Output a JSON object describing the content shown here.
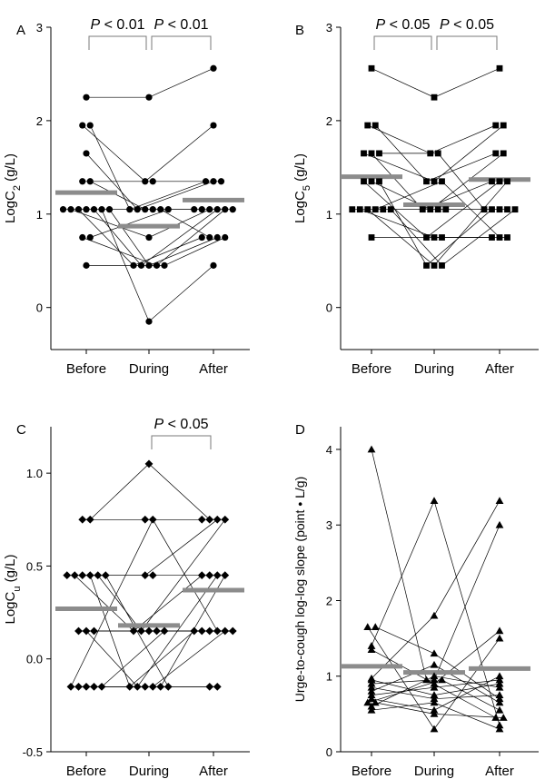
{
  "colors": {
    "ink": "#000000",
    "median_bar": "#8c8c8c",
    "background": "#ffffff"
  },
  "chart_data": [
    {
      "panel": "A",
      "type": "scatter",
      "marker": "circle",
      "ylabel": "LogC",
      "ylabel_sub": "2",
      "ylabel_unit": " (g/L)",
      "categories": [
        "Before",
        "During",
        "After"
      ],
      "ylim": [
        -0.45,
        3.0
      ],
      "yticks": [
        0,
        1,
        2,
        3
      ],
      "ytick_labels": [
        "0",
        "1",
        "2",
        "3"
      ],
      "brackets": [
        {
          "from": 0,
          "to": 1,
          "italic": "P",
          "text": " < 0.01"
        },
        {
          "from": 1,
          "to": 2,
          "italic": "P",
          "text": " < 0.01"
        }
      ],
      "medians": [
        1.23,
        0.87,
        1.15
      ],
      "subjects": [
        [
          2.25,
          2.25,
          2.56
        ],
        [
          1.95,
          1.35,
          1.95
        ],
        [
          1.95,
          1.05,
          1.35
        ],
        [
          1.65,
          1.05,
          1.35
        ],
        [
          1.35,
          1.35,
          1.35
        ],
        [
          1.35,
          1.05,
          1.05
        ],
        [
          1.05,
          1.05,
          1.05
        ],
        [
          1.05,
          0.75,
          1.05
        ],
        [
          1.05,
          0.45,
          0.75
        ],
        [
          1.05,
          1.05,
          0.75
        ],
        [
          1.05,
          0.45,
          1.05
        ],
        [
          1.05,
          -0.15,
          0.45
        ],
        [
          1.05,
          0.45,
          0.75
        ],
        [
          0.75,
          0.45,
          1.05
        ],
        [
          0.75,
          1.05,
          1.05
        ],
        [
          0.45,
          0.45,
          0.75
        ]
      ]
    },
    {
      "panel": "B",
      "type": "scatter",
      "marker": "square",
      "ylabel": "LogC",
      "ylabel_sub": "5",
      "ylabel_unit": " (g/L)",
      "categories": [
        "Before",
        "During",
        "After"
      ],
      "ylim": [
        -0.45,
        3.0
      ],
      "yticks": [
        0,
        1,
        2,
        3
      ],
      "ytick_labels": [
        "0",
        "1",
        "2",
        "3"
      ],
      "brackets": [
        {
          "from": 0,
          "to": 1,
          "italic": "P",
          "text": " < 0.05"
        },
        {
          "from": 1,
          "to": 2,
          "italic": "P",
          "text": " < 0.05"
        }
      ],
      "medians": [
        1.4,
        1.1,
        1.37
      ],
      "subjects": [
        [
          2.56,
          2.25,
          2.56
        ],
        [
          1.95,
          1.65,
          1.95
        ],
        [
          1.95,
          1.35,
          1.65
        ],
        [
          1.65,
          1.35,
          1.95
        ],
        [
          1.65,
          1.05,
          1.35
        ],
        [
          1.65,
          1.65,
          1.05
        ],
        [
          1.35,
          0.75,
          1.35
        ],
        [
          1.35,
          1.05,
          1.65
        ],
        [
          1.35,
          0.45,
          1.05
        ],
        [
          1.05,
          1.05,
          1.05
        ],
        [
          1.05,
          0.75,
          0.75
        ],
        [
          1.05,
          0.45,
          1.35
        ],
        [
          1.05,
          1.35,
          0.75
        ],
        [
          0.75,
          0.75,
          0.75
        ],
        [
          1.05,
          1.05,
          1.05
        ],
        [
          1.05,
          0.45,
          1.05
        ]
      ]
    },
    {
      "panel": "C",
      "type": "scatter",
      "marker": "diamond",
      "ylabel": "LogC",
      "ylabel_sub": "u",
      "ylabel_unit": " (g/L)",
      "categories": [
        "Before",
        "During",
        "After"
      ],
      "ylim": [
        -0.5,
        1.25
      ],
      "yticks": [
        -0.5,
        0.0,
        0.5,
        1.0
      ],
      "ytick_labels": [
        "-0.5",
        "0.0",
        "0.5",
        "1.0"
      ],
      "brackets": [
        {
          "from": 1,
          "to": 2,
          "italic": "P",
          "text": " < 0.05"
        }
      ],
      "medians": [
        0.27,
        0.18,
        0.37
      ],
      "subjects": [
        [
          0.75,
          0.75,
          0.75
        ],
        [
          0.75,
          1.05,
          0.75
        ],
        [
          0.45,
          0.45,
          0.75
        ],
        [
          0.45,
          0.15,
          0.45
        ],
        [
          0.45,
          0.45,
          0.45
        ],
        [
          0.45,
          -0.15,
          0.15
        ],
        [
          0.45,
          0.15,
          0.75
        ],
        [
          0.15,
          0.15,
          0.15
        ],
        [
          0.15,
          -0.15,
          0.45
        ],
        [
          0.15,
          0.15,
          0.15
        ],
        [
          -0.15,
          0.75,
          0.15
        ],
        [
          -0.15,
          -0.15,
          -0.15
        ],
        [
          -0.15,
          -0.15,
          0.15
        ],
        [
          -0.15,
          -0.15,
          0.45
        ],
        [
          -0.15,
          0.15,
          0.15
        ],
        [
          0.45,
          -0.15,
          -0.15
        ]
      ]
    },
    {
      "panel": "D",
      "type": "scatter",
      "marker": "triangle",
      "ylabel": "Urge-to-cough log-log slope (point • L/g)",
      "ylabel_sub": "",
      "ylabel_unit": "",
      "categories": [
        "Before",
        "During",
        "After"
      ],
      "ylim": [
        0,
        4.3
      ],
      "yticks": [
        0,
        1,
        2,
        3,
        4
      ],
      "ytick_labels": [
        "0",
        "1",
        "2",
        "3",
        "4"
      ],
      "brackets": [],
      "medians": [
        1.13,
        1.05,
        1.1
      ],
      "subjects": [
        [
          4.0,
          0.95,
          0.45
        ],
        [
          1.65,
          0.3,
          1.5
        ],
        [
          1.65,
          1.3,
          0.7
        ],
        [
          1.4,
          3.32,
          0.35
        ],
        [
          1.35,
          0.9,
          1.6
        ],
        [
          0.97,
          1.8,
          3.32
        ],
        [
          0.9,
          0.95,
          3.0
        ],
        [
          0.85,
          0.7,
          0.75
        ],
        [
          0.8,
          1.15,
          0.65
        ],
        [
          0.75,
          0.85,
          0.95
        ],
        [
          0.7,
          0.55,
          1.0
        ],
        [
          0.65,
          0.95,
          0.55
        ],
        [
          0.6,
          1.0,
          0.85
        ],
        [
          0.55,
          0.65,
          0.3
        ],
        [
          0.95,
          0.75,
          0.9
        ],
        [
          0.65,
          0.5,
          0.45
        ]
      ]
    }
  ]
}
